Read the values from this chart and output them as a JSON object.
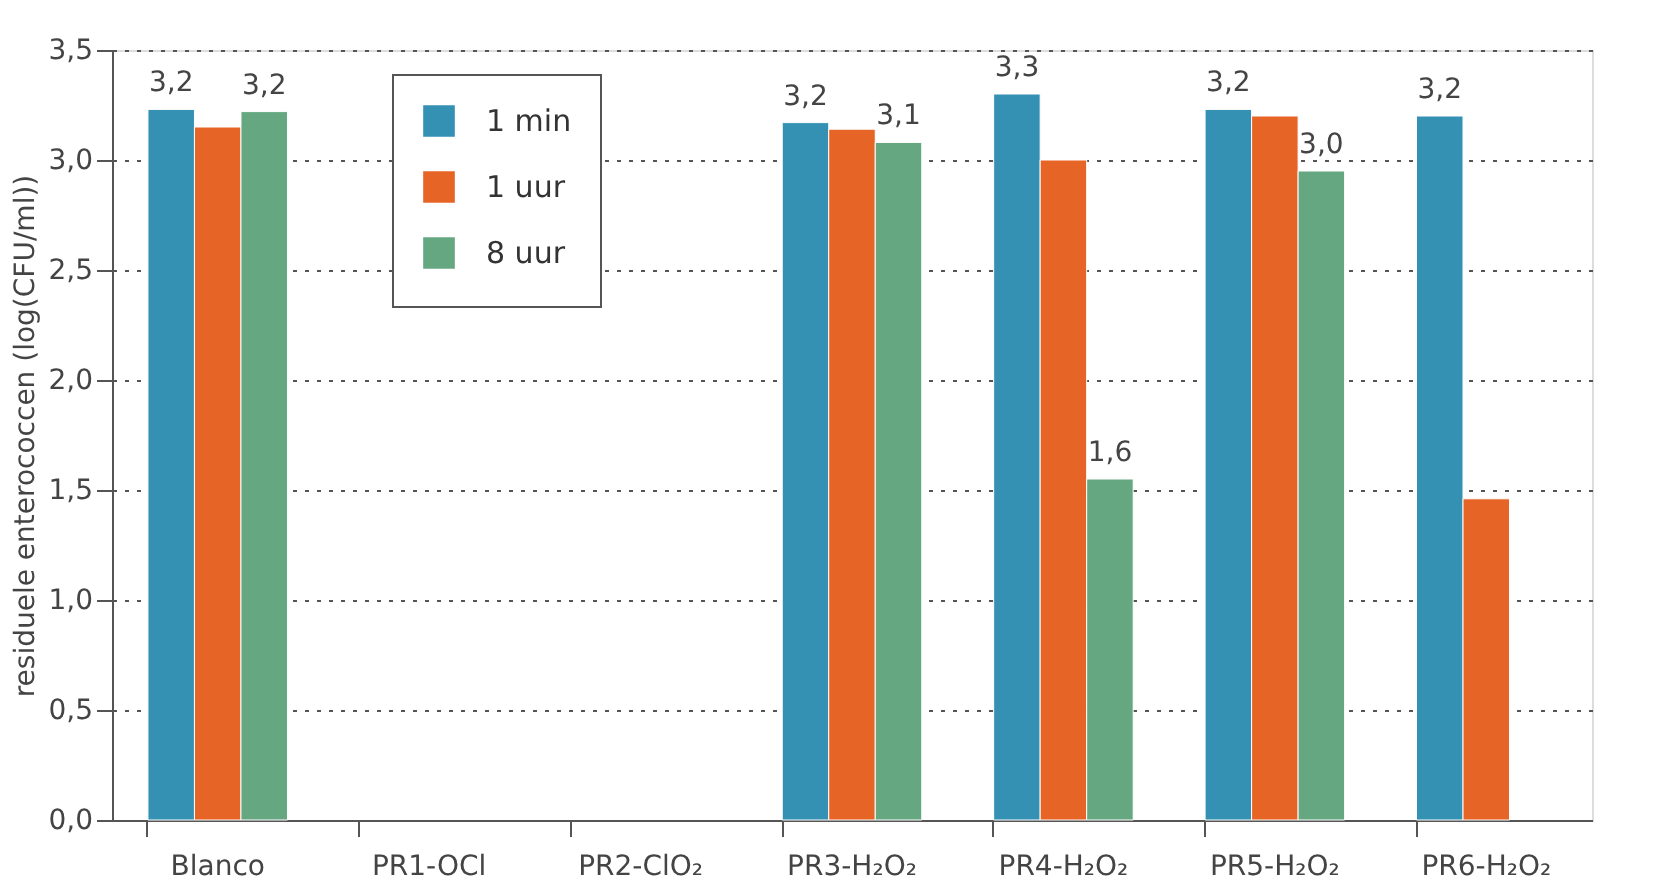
{
  "chart_data": {
    "type": "bar",
    "ylabel": "residuele enterococcen (log(CFU/ml))",
    "categories": [
      "Blanco",
      "PR1-OCl",
      "PR2-ClO₂",
      "PR3-H₂O₂",
      "PR4-H₂O₂",
      "PR5-H₂O₂",
      "PR6-H₂O₂"
    ],
    "series": [
      {
        "name": "1 min",
        "color": "#3591b4",
        "values": [
          3.23,
          null,
          null,
          3.17,
          3.3,
          3.23,
          3.2
        ],
        "value_labels": [
          "3,2",
          null,
          null,
          "3,2",
          "3,3",
          "3,2",
          "3,2"
        ]
      },
      {
        "name": "1 uur",
        "color": "#e66425",
        "values": [
          3.15,
          null,
          null,
          3.14,
          3.0,
          3.2,
          1.46
        ]
      },
      {
        "name": "8 uur",
        "color": "#64a781",
        "values": [
          3.22,
          null,
          null,
          3.08,
          1.55,
          2.95,
          null
        ],
        "value_labels": [
          "3,2",
          null,
          null,
          "3,1",
          "1,6",
          "3,0",
          null
        ]
      }
    ],
    "ylim": [
      0,
      3.5
    ],
    "yticks": [
      {
        "value": 0,
        "label": "0,0"
      },
      {
        "value": 0.5,
        "label": "0,5"
      },
      {
        "value": 1,
        "label": "1,0"
      },
      {
        "value": 1.5,
        "label": "1,5"
      },
      {
        "value": 2,
        "label": "2,0"
      },
      {
        "value": 2.5,
        "label": "2,5"
      },
      {
        "value": 3,
        "label": "3,0"
      },
      {
        "value": 3.5,
        "label": "3,5"
      }
    ],
    "grid": "y",
    "legend": "top left"
  }
}
